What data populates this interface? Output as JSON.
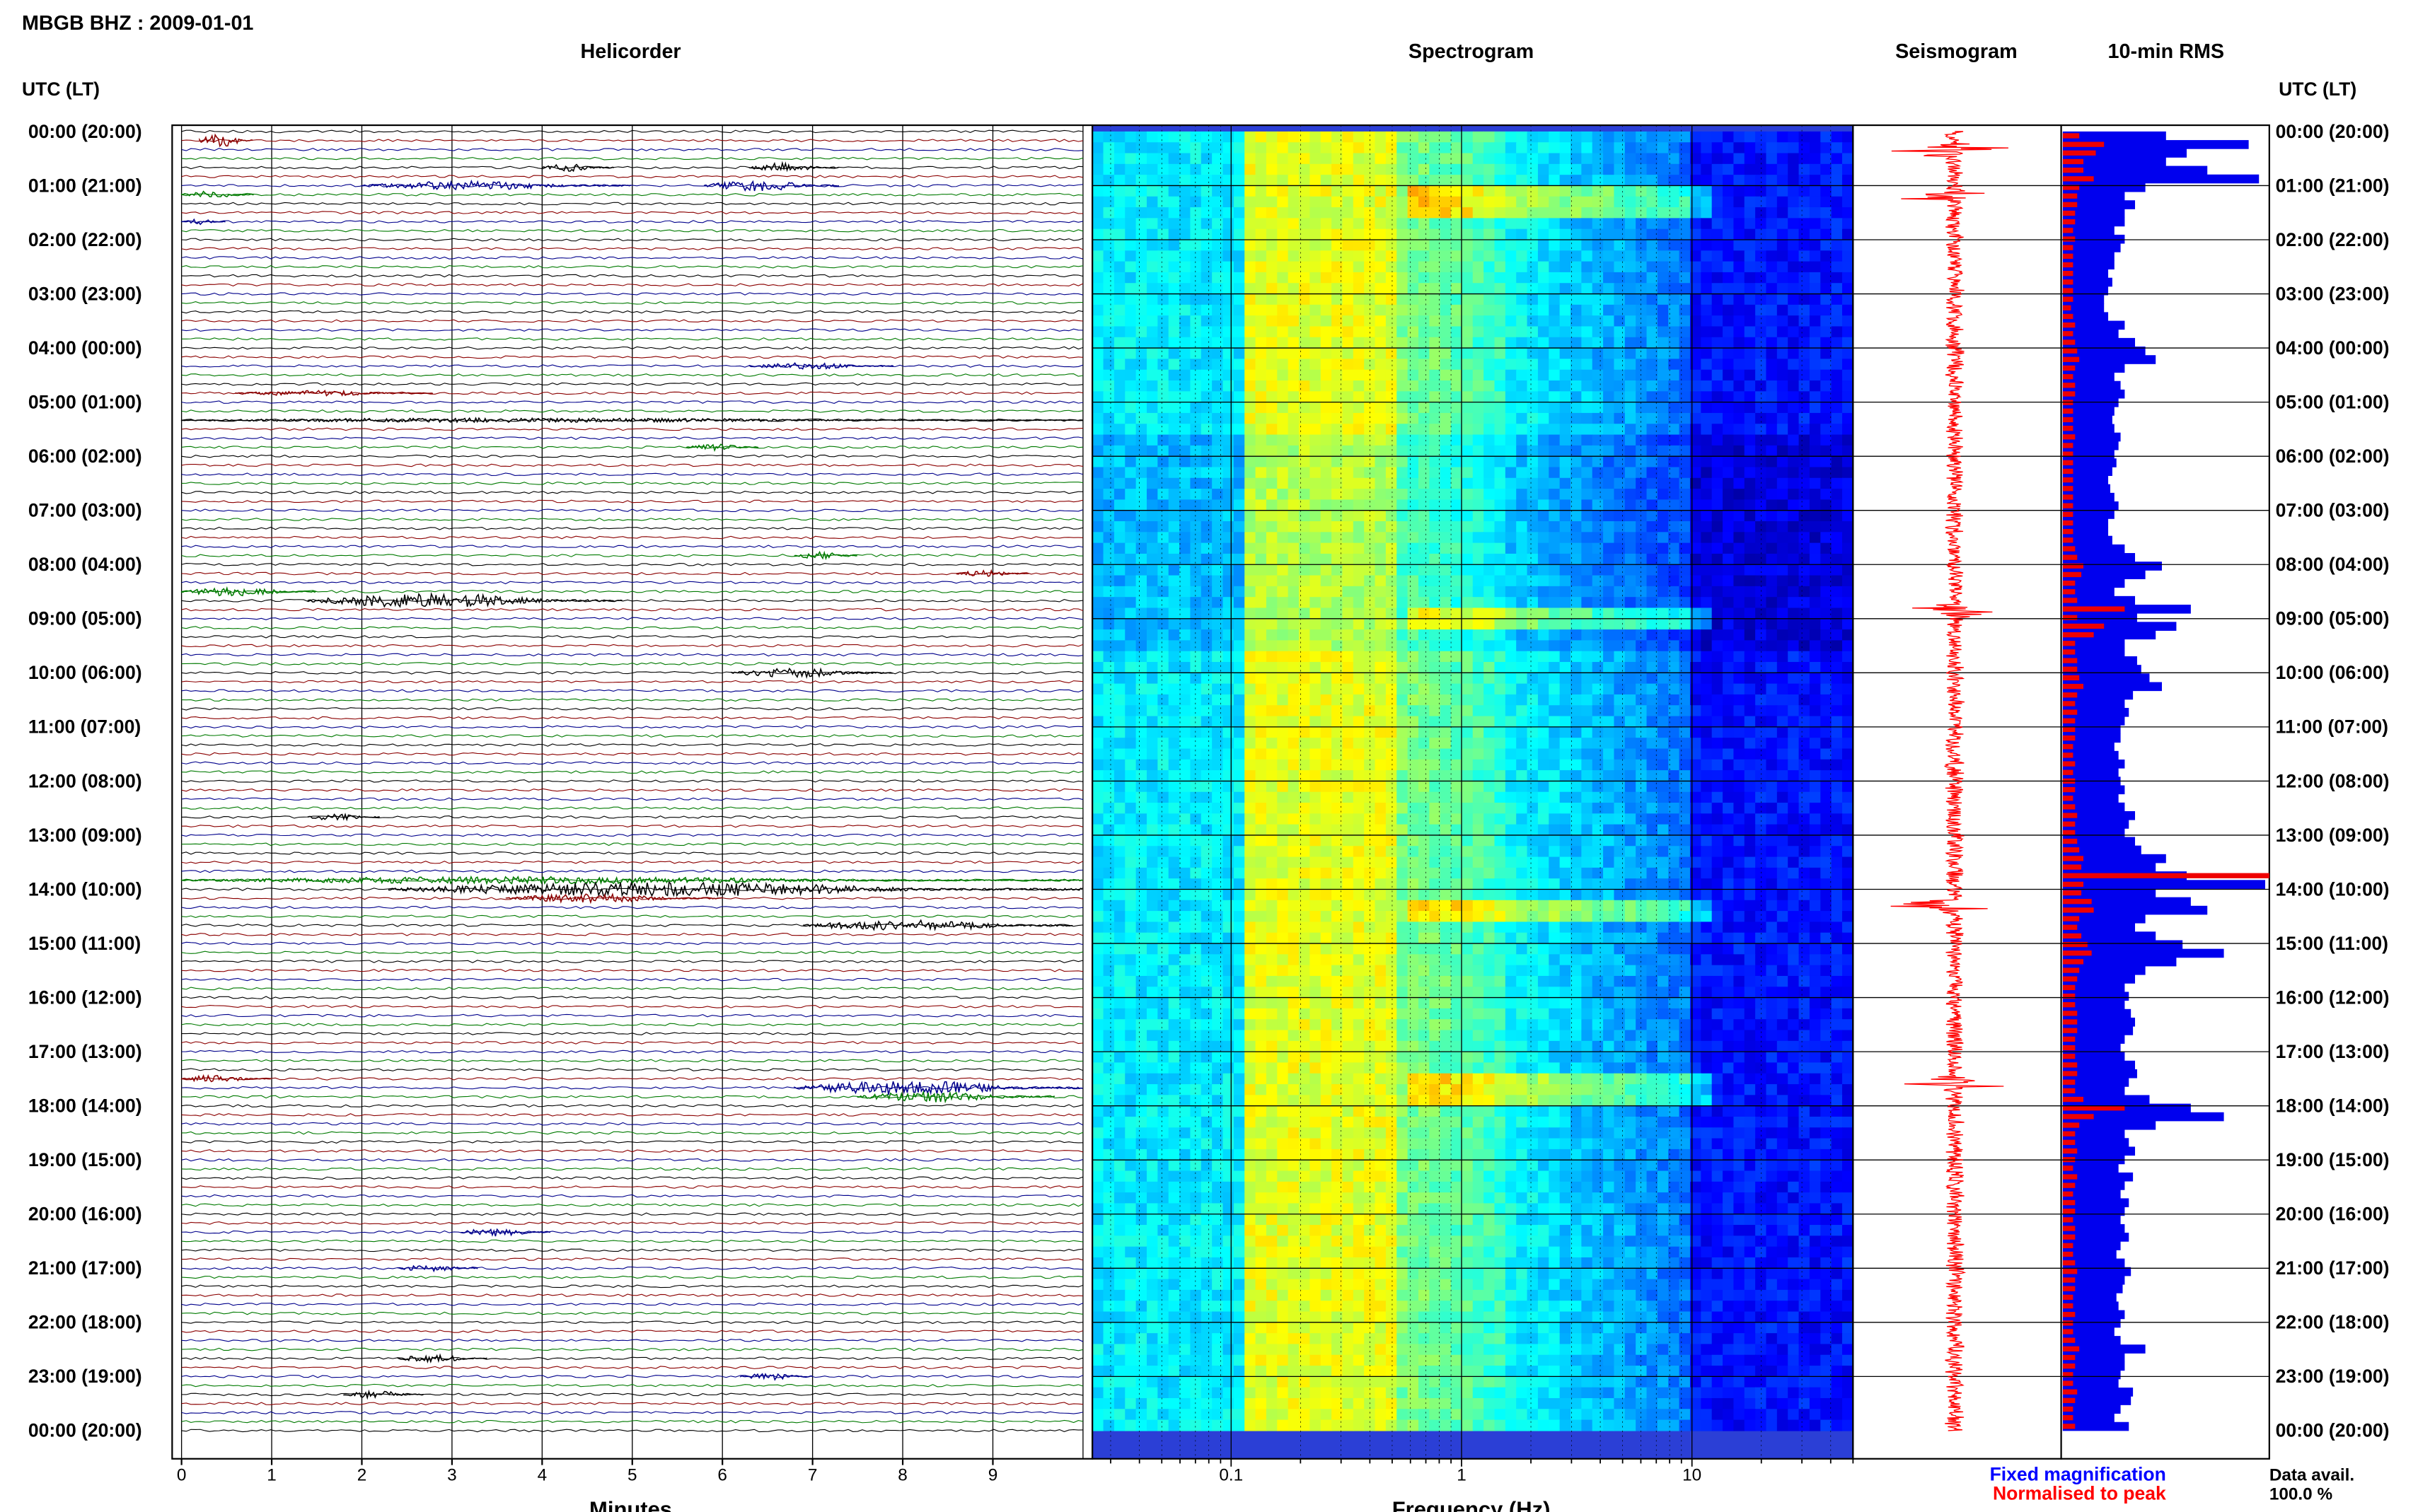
{
  "title": "MBGB BHZ : 2009-01-01",
  "panels": {
    "helicorder": "Helicorder",
    "spectrogram": "Spectrogram",
    "seismogram": "Seismogram",
    "rms": "10-min RMS"
  },
  "axis_titles": {
    "left": "UTC (LT)",
    "right": "UTC (LT)",
    "helicorder_x": "Minutes",
    "spectrogram_x": "Frequency (Hz)"
  },
  "legend": {
    "fixed": "Fixed magnification",
    "normalised": "Normalised to peak"
  },
  "data_avail": {
    "label": "Data avail.",
    "value": "100.0 %"
  },
  "colors": {
    "trace_cycle": [
      "#000000",
      "#8b0000",
      "#00008b",
      "#007a00"
    ],
    "rms_fixed": "#0000ee",
    "rms_normalised": "#ee0000",
    "seismogram": "#ff0000",
    "legend_fixed": "#0000ff",
    "legend_normalised": "#ff0000"
  },
  "chart_data": {
    "type": "heatmap",
    "time_labels": [
      "00:00 (20:00)",
      "01:00 (21:00)",
      "02:00 (22:00)",
      "03:00 (23:00)",
      "04:00 (00:00)",
      "05:00 (01:00)",
      "06:00 (02:00)",
      "07:00 (03:00)",
      "08:00 (04:00)",
      "09:00 (05:00)",
      "10:00 (06:00)",
      "11:00 (07:00)",
      "12:00 (08:00)",
      "13:00 (09:00)",
      "14:00 (10:00)",
      "15:00 (11:00)",
      "16:00 (12:00)",
      "17:00 (13:00)",
      "18:00 (14:00)",
      "19:00 (15:00)",
      "20:00 (16:00)",
      "21:00 (17:00)",
      "22:00 (18:00)",
      "23:00 (19:00)",
      "00:00 (20:00)"
    ],
    "helicorder": {
      "x_ticks": [
        "0",
        "1",
        "2",
        "3",
        "4",
        "5",
        "6",
        "7",
        "8",
        "9"
      ],
      "xlim": [
        0,
        10
      ],
      "lines_per_hour": 6,
      "events": [
        {
          "hour": 0,
          "row": 1,
          "t": 0.2,
          "dur": 0.6,
          "amp": 4
        },
        {
          "hour": 0,
          "row": 4,
          "t": 4.0,
          "dur": 0.8,
          "amp": 2
        },
        {
          "hour": 0,
          "row": 4,
          "t": 6.3,
          "dur": 1.0,
          "amp": 2.5
        },
        {
          "hour": 1,
          "row": 0,
          "t": 2.0,
          "dur": 3.0,
          "amp": 2.5
        },
        {
          "hour": 1,
          "row": 0,
          "t": 5.8,
          "dur": 1.5,
          "amp": 3
        },
        {
          "hour": 1,
          "row": 1,
          "t": 0.0,
          "dur": 0.8,
          "amp": 2
        },
        {
          "hour": 1,
          "row": 4,
          "t": 0.0,
          "dur": 0.5,
          "amp": 1.5
        },
        {
          "hour": 4,
          "row": 2,
          "t": 6.3,
          "dur": 1.6,
          "amp": 1.8
        },
        {
          "hour": 4,
          "row": 5,
          "t": 0.6,
          "dur": 2.2,
          "amp": 1.5
        },
        {
          "hour": 5,
          "row": 2,
          "t": 0.0,
          "dur": 10,
          "amp": 1.2
        },
        {
          "hour": 5,
          "row": 5,
          "t": 5.6,
          "dur": 0.8,
          "amp": 1.8
        },
        {
          "hour": 7,
          "row": 5,
          "t": 6.8,
          "dur": 0.7,
          "amp": 2
        },
        {
          "hour": 8,
          "row": 1,
          "t": 8.6,
          "dur": 0.8,
          "amp": 1.8
        },
        {
          "hour": 8,
          "row": 3,
          "t": 0.0,
          "dur": 1.5,
          "amp": 2.5
        },
        {
          "hour": 8,
          "row": 4,
          "t": 1.4,
          "dur": 3.5,
          "amp": 4
        },
        {
          "hour": 10,
          "row": 0,
          "t": 6.1,
          "dur": 1.8,
          "amp": 2.5
        },
        {
          "hour": 12,
          "row": 4,
          "t": 1.4,
          "dur": 0.8,
          "amp": 1.8
        },
        {
          "hour": 13,
          "row": 5,
          "t": 0.0,
          "dur": 10,
          "amp": 2
        },
        {
          "hour": 14,
          "row": 0,
          "t": 2.3,
          "dur": 7.7,
          "amp": 4
        },
        {
          "hour": 14,
          "row": 1,
          "t": 3.6,
          "dur": 2.4,
          "amp": 2.5
        },
        {
          "hour": 14,
          "row": 4,
          "t": 6.9,
          "dur": 3.0,
          "amp": 3
        },
        {
          "hour": 17,
          "row": 3,
          "t": 0.0,
          "dur": 1.0,
          "amp": 2
        },
        {
          "hour": 17,
          "row": 4,
          "t": 6.8,
          "dur": 3.2,
          "amp": 4
        },
        {
          "hour": 17,
          "row": 5,
          "t": 7.5,
          "dur": 2.2,
          "amp": 3
        },
        {
          "hour": 20,
          "row": 2,
          "t": 3.1,
          "dur": 1.0,
          "amp": 2.5
        },
        {
          "hour": 21,
          "row": 0,
          "t": 2.4,
          "dur": 0.9,
          "amp": 2
        },
        {
          "hour": 22,
          "row": 4,
          "t": 2.4,
          "dur": 1.0,
          "amp": 2
        },
        {
          "hour": 23,
          "row": 0,
          "t": 6.2,
          "dur": 0.8,
          "amp": 2
        },
        {
          "hour": 23,
          "row": 2,
          "t": 1.8,
          "dur": 0.9,
          "amp": 2
        }
      ]
    },
    "spectrogram": {
      "x_ticks": [
        "0.1",
        "1",
        "10"
      ],
      "xlim_hz": [
        0.025,
        50
      ],
      "log_x": true,
      "colormap": "jet",
      "bright_bands_hour": [
        1.2,
        8.85,
        14.3,
        17.6
      ]
    },
    "seismogram": {
      "bursts_hour": [
        0.35,
        1.2,
        8.85,
        14.3,
        17.6
      ]
    },
    "rms": {
      "fixed_magnification": [
        0.5,
        0.9,
        0.6,
        0.5,
        0.7,
        0.95,
        0.4,
        0.3,
        0.35,
        0.3,
        0.3,
        0.25,
        0.3,
        0.28,
        0.25,
        0.25,
        0.22,
        0.24,
        0.22,
        0.2,
        0.2,
        0.22,
        0.3,
        0.27,
        0.35,
        0.4,
        0.45,
        0.3,
        0.25,
        0.28,
        0.3,
        0.27,
        0.25,
        0.24,
        0.25,
        0.28,
        0.27,
        0.25,
        0.26,
        0.24,
        0.22,
        0.23,
        0.25,
        0.27,
        0.25,
        0.22,
        0.22,
        0.24,
        0.3,
        0.35,
        0.48,
        0.4,
        0.3,
        0.25,
        0.35,
        0.62,
        0.36,
        0.55,
        0.45,
        0.3,
        0.3,
        0.36,
        0.38,
        0.42,
        0.48,
        0.34,
        0.3,
        0.32,
        0.3,
        0.28,
        0.28,
        0.25,
        0.27,
        0.3,
        0.27,
        0.28,
        0.3,
        0.27,
        0.3,
        0.35,
        0.32,
        0.3,
        0.35,
        0.38,
        0.5,
        0.45,
        0.6,
        0.98,
        0.45,
        0.62,
        0.7,
        0.4,
        0.35,
        0.45,
        0.58,
        0.78,
        0.55,
        0.4,
        0.35,
        0.3,
        0.32,
        0.3,
        0.33,
        0.35,
        0.34,
        0.3,
        0.28,
        0.3,
        0.35,
        0.36,
        0.32,
        0.3,
        0.42,
        0.62,
        0.78,
        0.45,
        0.3,
        0.32,
        0.35,
        0.3,
        0.27,
        0.34,
        0.3,
        0.28,
        0.32,
        0.3,
        0.28,
        0.3,
        0.32,
        0.28,
        0.26,
        0.3,
        0.33,
        0.3,
        0.29,
        0.26,
        0.27,
        0.3,
        0.28,
        0.25,
        0.28,
        0.4,
        0.3,
        0.3,
        0.28,
        0.27,
        0.34,
        0.33,
        0.28,
        0.25,
        0.32
      ],
      "normalised_to_peak": [
        0.08,
        0.2,
        0.16,
        0.1,
        0.1,
        0.15,
        0.08,
        0.07,
        0.07,
        0.06,
        0.06,
        0.05,
        0.06,
        0.05,
        0.05,
        0.05,
        0.05,
        0.05,
        0.05,
        0.05,
        0.04,
        0.05,
        0.06,
        0.05,
        0.06,
        0.07,
        0.08,
        0.06,
        0.05,
        0.06,
        0.06,
        0.05,
        0.05,
        0.05,
        0.05,
        0.06,
        0.05,
        0.05,
        0.05,
        0.05,
        0.05,
        0.05,
        0.05,
        0.05,
        0.05,
        0.05,
        0.05,
        0.05,
        0.06,
        0.07,
        0.1,
        0.09,
        0.06,
        0.06,
        0.07,
        0.3,
        0.07,
        0.2,
        0.15,
        0.06,
        0.06,
        0.07,
        0.07,
        0.08,
        0.1,
        0.07,
        0.06,
        0.07,
        0.06,
        0.06,
        0.06,
        0.05,
        0.05,
        0.06,
        0.05,
        0.06,
        0.06,
        0.05,
        0.06,
        0.07,
        0.06,
        0.06,
        0.07,
        0.08,
        0.1,
        0.09,
        1.0,
        0.1,
        0.09,
        0.14,
        0.15,
        0.08,
        0.07,
        0.09,
        0.12,
        0.14,
        0.1,
        0.08,
        0.07,
        0.06,
        0.06,
        0.06,
        0.07,
        0.07,
        0.07,
        0.06,
        0.06,
        0.06,
        0.07,
        0.07,
        0.06,
        0.06,
        0.1,
        0.3,
        0.15,
        0.08,
        0.06,
        0.06,
        0.07,
        0.06,
        0.05,
        0.07,
        0.06,
        0.05,
        0.06,
        0.06,
        0.05,
        0.06,
        0.06,
        0.05,
        0.05,
        0.06,
        0.07,
        0.06,
        0.06,
        0.05,
        0.05,
        0.06,
        0.05,
        0.05,
        0.06,
        0.08,
        0.06,
        0.06,
        0.05,
        0.05,
        0.07,
        0.06,
        0.05,
        0.05,
        0.06
      ]
    }
  }
}
